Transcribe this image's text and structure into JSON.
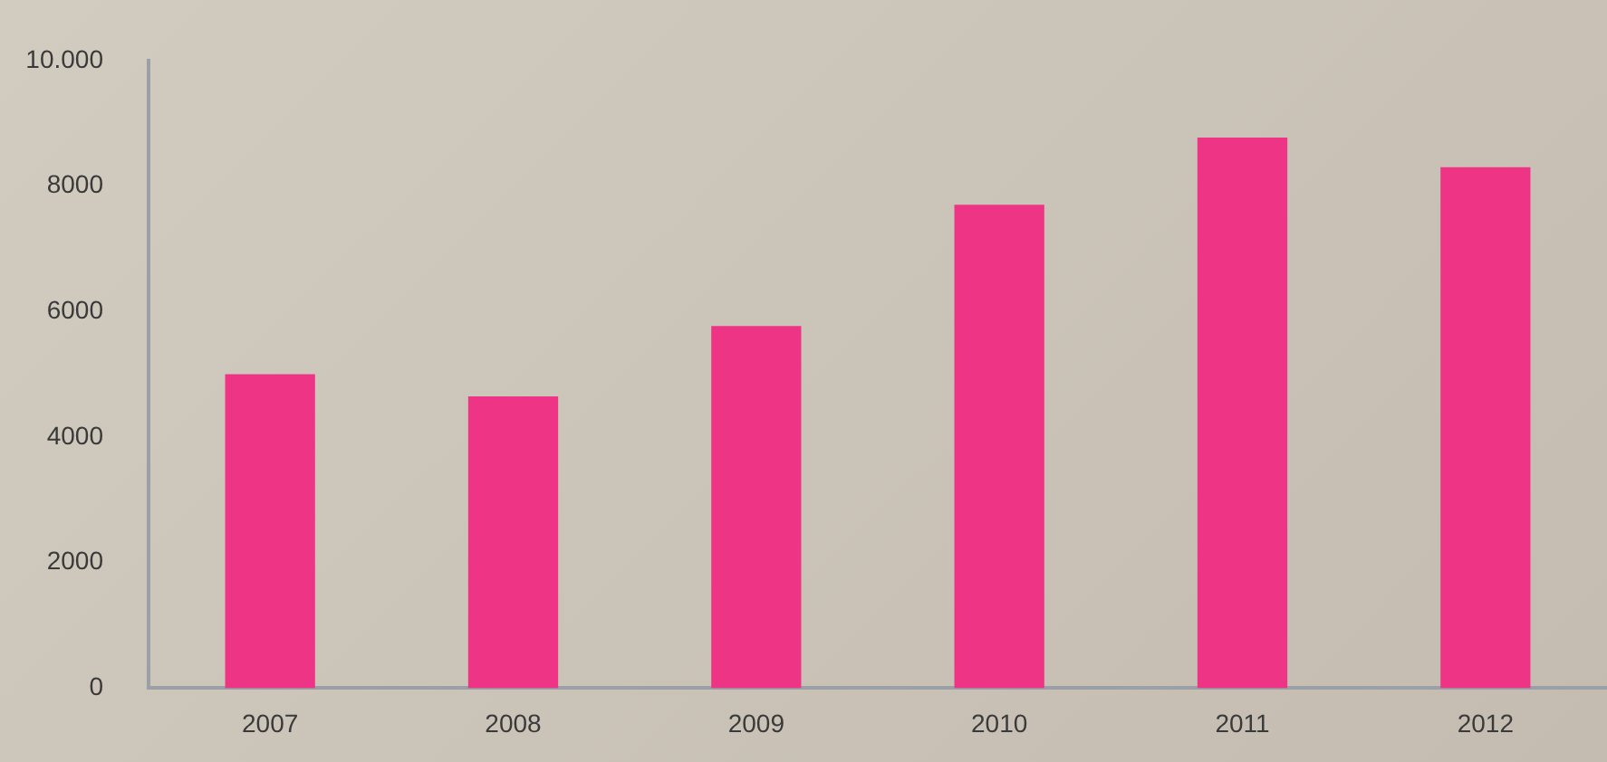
{
  "chart_data": {
    "type": "bar",
    "categories": [
      "2007",
      "2008",
      "2009",
      "2010",
      "2011",
      "2012"
    ],
    "values": [
      5000,
      4650,
      5770,
      7700,
      8770,
      8300
    ],
    "color": "#ee3485",
    "ylim": [
      0,
      10000
    ],
    "yticks": [
      0,
      2000,
      4000,
      6000,
      8000,
      {
        "value": 10000,
        "label": "10.000"
      }
    ],
    "grid": false,
    "legend": false
  }
}
